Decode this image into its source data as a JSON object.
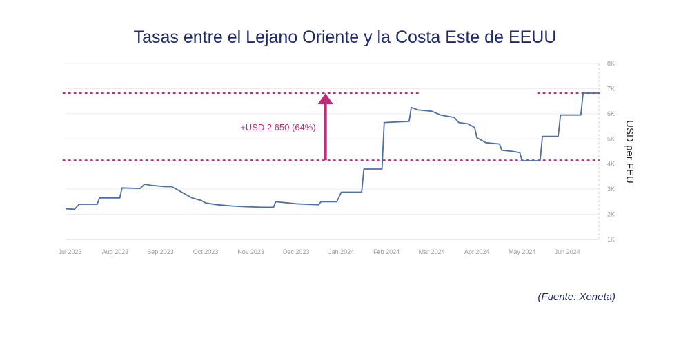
{
  "title": "Tasas entre el Lejano Oriente y la Costa Este de EEUU",
  "source": "(Fuente: Xeneta)",
  "chart_data": {
    "type": "line",
    "ylabel": "USD per FEU",
    "ylim": [
      1000,
      8000
    ],
    "yticks": [
      {
        "v": 1000,
        "label": "1K"
      },
      {
        "v": 2000,
        "label": "2K"
      },
      {
        "v": 3000,
        "label": "3K"
      },
      {
        "v": 4000,
        "label": "4K"
      },
      {
        "v": 5000,
        "label": "5K"
      },
      {
        "v": 6000,
        "label": "6K"
      },
      {
        "v": 7000,
        "label": "7K"
      },
      {
        "v": 8000,
        "label": "8K"
      }
    ],
    "xlim": [
      0,
      11.8
    ],
    "xticks": [
      {
        "v": 0.1,
        "label": "Jul 2023"
      },
      {
        "v": 1.1,
        "label": "Aug 2023"
      },
      {
        "v": 2.1,
        "label": "Sep 2023"
      },
      {
        "v": 3.1,
        "label": "Oct 2023"
      },
      {
        "v": 4.1,
        "label": "Nov 2023"
      },
      {
        "v": 5.1,
        "label": "Dec 2023"
      },
      {
        "v": 6.1,
        "label": "Jan 2024"
      },
      {
        "v": 7.1,
        "label": "Feb 2024"
      },
      {
        "v": 8.1,
        "label": "Mar 2024"
      },
      {
        "v": 9.1,
        "label": "Apr 2024"
      },
      {
        "v": 10.1,
        "label": "May 2024"
      },
      {
        "v": 11.1,
        "label": "Jun 2024"
      }
    ],
    "series": [
      {
        "color": "#4a6fa5",
        "points": [
          [
            0,
            2220
          ],
          [
            0.2,
            2200
          ],
          [
            0.3,
            2400
          ],
          [
            0.7,
            2400
          ],
          [
            0.75,
            2650
          ],
          [
            1.2,
            2650
          ],
          [
            1.25,
            3050
          ],
          [
            1.65,
            3030
          ],
          [
            1.75,
            3200
          ],
          [
            1.9,
            3150
          ],
          [
            2.2,
            3100
          ],
          [
            2.35,
            3100
          ],
          [
            2.5,
            2950
          ],
          [
            2.65,
            2800
          ],
          [
            2.8,
            2650
          ],
          [
            3,
            2550
          ],
          [
            3.1,
            2450
          ],
          [
            3.35,
            2380
          ],
          [
            3.7,
            2330
          ],
          [
            4,
            2300
          ],
          [
            4.35,
            2280
          ],
          [
            4.6,
            2280
          ],
          [
            4.65,
            2500
          ],
          [
            5.1,
            2420
          ],
          [
            5.3,
            2400
          ],
          [
            5.6,
            2380
          ],
          [
            5.65,
            2500
          ],
          [
            6,
            2500
          ],
          [
            6.1,
            2880
          ],
          [
            6.55,
            2880
          ],
          [
            6.6,
            3800
          ],
          [
            7,
            3800
          ],
          [
            7.05,
            5650
          ],
          [
            7.6,
            5700
          ],
          [
            7.65,
            6250
          ],
          [
            7.8,
            6150
          ],
          [
            8.1,
            6100
          ],
          [
            8.3,
            5950
          ],
          [
            8.6,
            5850
          ],
          [
            8.7,
            5650
          ],
          [
            8.9,
            5600
          ],
          [
            9.05,
            5450
          ],
          [
            9.1,
            5050
          ],
          [
            9.3,
            4850
          ],
          [
            9.6,
            4800
          ],
          [
            9.65,
            4550
          ],
          [
            9.9,
            4500
          ],
          [
            10.05,
            4450
          ],
          [
            10.1,
            4130
          ],
          [
            10.5,
            4130
          ],
          [
            10.55,
            5100
          ],
          [
            10.9,
            5100
          ],
          [
            10.95,
            5950
          ],
          [
            11.4,
            5950
          ],
          [
            11.45,
            6820
          ],
          [
            11.8,
            6820
          ]
        ]
      }
    ],
    "reference_lines": [
      {
        "y": 6820,
        "segments": [
          [
            -0.05,
            7.8
          ],
          [
            10.45,
            11.8
          ]
        ],
        "color": "#c2297a"
      },
      {
        "y": 4150,
        "segments": [
          [
            -0.05,
            11.8
          ]
        ],
        "color": "#c2297a"
      }
    ],
    "annotation": {
      "text": "+USD 2 650 (64%)",
      "arrow_x": 5.75,
      "from_y": 4150,
      "to_y": 6820,
      "text_y": 5200,
      "color": "#c2297a"
    }
  }
}
